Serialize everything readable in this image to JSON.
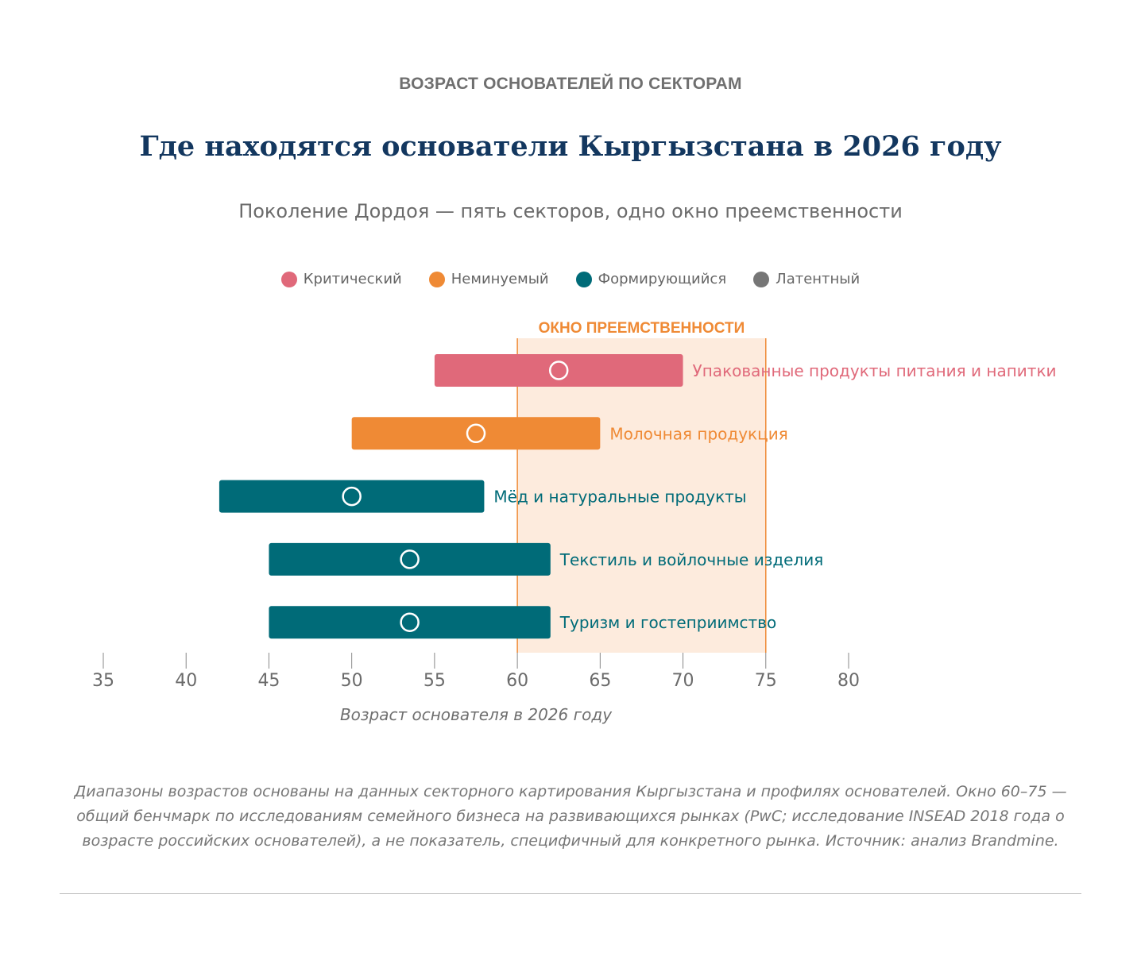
{
  "header": {
    "kicker": "ВОЗРАСТ ОСНОВАТЕЛЕЙ ПО СЕКТОРАМ",
    "title": "Где находятся основатели Кыргызстана в 2026 году",
    "subtitle": "Поколение Дордоя — пять секторов, одно окно преемственности"
  },
  "legend": [
    {
      "label": "Критический",
      "color": "#e0697a"
    },
    {
      "label": "Неминуемый",
      "color": "#ef8a35"
    },
    {
      "label": "Формирующийся",
      "color": "#006b78"
    },
    {
      "label": "Латентный",
      "color": "#767676"
    }
  ],
  "chart_data": {
    "type": "range-bar",
    "xlabel": "Возраст основателя в 2026 году",
    "xlim": [
      35,
      80
    ],
    "xticks": [
      35,
      40,
      45,
      50,
      55,
      60,
      65,
      70,
      75,
      80
    ],
    "window": {
      "label": "ОКНО ПРЕЕМСТВЕННОСТИ",
      "from": 60,
      "to": 75,
      "color": "#ef8a35",
      "fill": "#fdebdd"
    },
    "series": [
      {
        "name": "Упакованные продукты питания и напитки",
        "from": 55,
        "to": 70,
        "marker": 62.5,
        "category": "Критический",
        "color": "#e0697a"
      },
      {
        "name": "Молочная продукция",
        "from": 50,
        "to": 65,
        "marker": 57.5,
        "category": "Неминуемый",
        "color": "#ef8a35"
      },
      {
        "name": "Мёд и натуральные продукты",
        "from": 42,
        "to": 58,
        "marker": 50,
        "category": "Формирующийся",
        "color": "#006b78"
      },
      {
        "name": "Текстиль и войлочные изделия",
        "from": 45,
        "to": 62,
        "marker": 53.5,
        "category": "Формирующийся",
        "color": "#006b78"
      },
      {
        "name": "Туризм и гостеприимство",
        "from": 45,
        "to": 62,
        "marker": 53.5,
        "category": "Формирующийся",
        "color": "#006b78"
      }
    ],
    "axis_color": "#888888",
    "tick_label_color": "#6b6b6b"
  },
  "footer": {
    "note": "Диапазоны возрастов основаны на данных секторного картирования Кыргызстана и профилях основателей. Окно 60–75 — общий бенчмарк по исследованиям семейного бизнеса на развивающихся рынках (PwC; исследование INSEAD 2018 года о возрасте российских основателей), а не показатель, специфичный для конкретного рынка. Источник: анализ Brandmine."
  }
}
